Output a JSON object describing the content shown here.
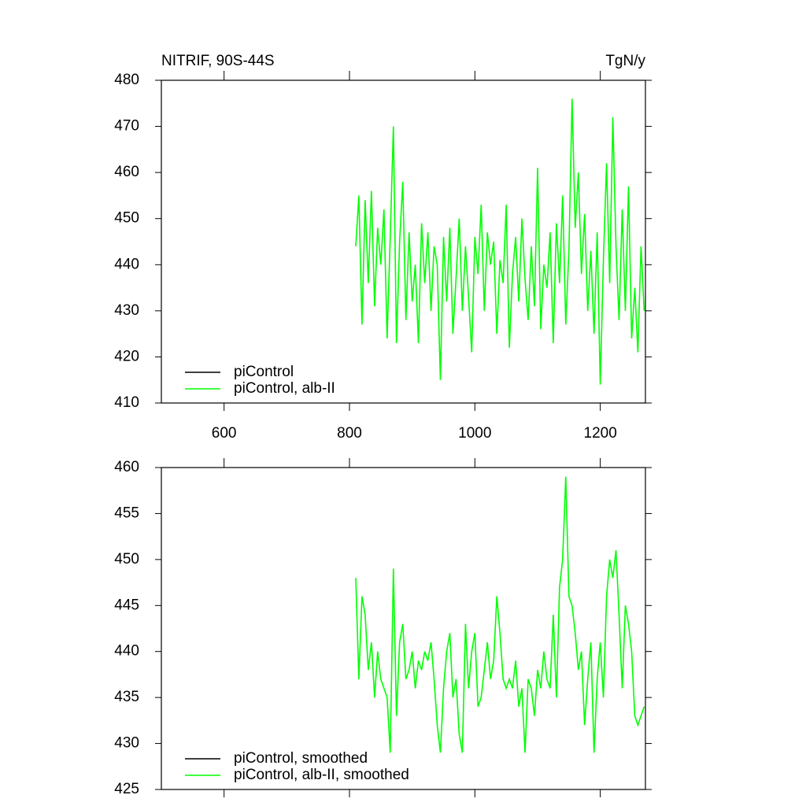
{
  "chart_data": [
    {
      "type": "line",
      "title": "NITRIF, 90S-44S",
      "units": "TgN/y",
      "xlim": [
        500,
        1272
      ],
      "xticks": [
        600,
        800,
        1000,
        1200
      ],
      "xtick_labels": true,
      "ylim": [
        410,
        480
      ],
      "yticks": [
        410,
        420,
        430,
        440,
        450,
        460,
        470,
        480
      ],
      "legend": "lower left",
      "series": [
        {
          "name": "piControl",
          "color": "#000000",
          "x": [],
          "values": []
        },
        {
          "name": "piControl, alb-II",
          "color": "#00ff00",
          "x": [
            810,
            815,
            820,
            825,
            830,
            835,
            840,
            845,
            850,
            855,
            860,
            865,
            870,
            875,
            880,
            885,
            890,
            895,
            900,
            905,
            910,
            915,
            920,
            925,
            930,
            935,
            940,
            945,
            950,
            955,
            960,
            965,
            970,
            975,
            980,
            985,
            990,
            995,
            1000,
            1005,
            1010,
            1015,
            1020,
            1025,
            1030,
            1035,
            1040,
            1045,
            1050,
            1055,
            1060,
            1065,
            1070,
            1075,
            1080,
            1085,
            1090,
            1095,
            1100,
            1105,
            1110,
            1115,
            1120,
            1125,
            1130,
            1135,
            1140,
            1145,
            1150,
            1155,
            1160,
            1165,
            1170,
            1175,
            1180,
            1185,
            1190,
            1195,
            1200,
            1205,
            1210,
            1215,
            1220,
            1225,
            1230,
            1235,
            1240,
            1245,
            1250,
            1255,
            1260,
            1265,
            1270
          ],
          "values": [
            444,
            455,
            427,
            454,
            436,
            456,
            431,
            448,
            440,
            452,
            424,
            446,
            470,
            423,
            445,
            458,
            428,
            447,
            432,
            440,
            423,
            449,
            436,
            447,
            430,
            444,
            440,
            415,
            446,
            432,
            448,
            425,
            437,
            450,
            430,
            444,
            433,
            421,
            446,
            438,
            453,
            430,
            447,
            440,
            445,
            425,
            441,
            436,
            453,
            422,
            438,
            446,
            432,
            450,
            437,
            428,
            444,
            431,
            461,
            426,
            440,
            435,
            447,
            423,
            449,
            436,
            455,
            427,
            443,
            476,
            448,
            460,
            438,
            451,
            430,
            443,
            425,
            447,
            414,
            441,
            462,
            436,
            472,
            444,
            428,
            452,
            430,
            457,
            424,
            435,
            421,
            444,
            430
          ]
        }
      ]
    },
    {
      "type": "line",
      "xlim": [
        500,
        1272
      ],
      "xticks": [
        600,
        800,
        1000,
        1200
      ],
      "xtick_labels": false,
      "ylim": [
        425,
        460
      ],
      "yticks": [
        425,
        430,
        435,
        440,
        445,
        450,
        455,
        460
      ],
      "legend": "lower left",
      "series": [
        {
          "name": "piControl, smoothed",
          "color": "#000000",
          "x": [],
          "values": []
        },
        {
          "name": "piControl, alb-II, smoothed",
          "color": "#00ff00",
          "x": [
            810,
            815,
            820,
            825,
            830,
            835,
            840,
            845,
            850,
            855,
            860,
            865,
            870,
            875,
            880,
            885,
            890,
            895,
            900,
            905,
            910,
            915,
            920,
            925,
            930,
            935,
            940,
            945,
            950,
            955,
            960,
            965,
            970,
            975,
            980,
            985,
            990,
            995,
            1000,
            1005,
            1010,
            1015,
            1020,
            1025,
            1030,
            1035,
            1040,
            1045,
            1050,
            1055,
            1060,
            1065,
            1070,
            1075,
            1080,
            1085,
            1090,
            1095,
            1100,
            1105,
            1110,
            1115,
            1120,
            1125,
            1130,
            1135,
            1140,
            1145,
            1150,
            1155,
            1160,
            1165,
            1170,
            1175,
            1180,
            1185,
            1190,
            1195,
            1200,
            1205,
            1210,
            1215,
            1220,
            1225,
            1230,
            1235,
            1240,
            1245,
            1250,
            1255,
            1260,
            1265,
            1270
          ],
          "values": [
            448,
            437,
            446,
            444,
            438,
            441,
            435,
            440,
            437,
            436,
            435,
            429,
            449,
            433,
            441,
            443,
            437,
            438,
            440,
            436,
            439,
            438,
            440,
            439,
            441,
            437,
            432,
            429,
            436,
            440,
            442,
            435,
            437,
            431,
            429,
            443,
            436,
            440,
            442,
            434,
            435,
            438,
            441,
            437,
            439,
            446,
            442,
            437,
            436,
            437,
            436,
            439,
            434,
            436,
            429,
            437,
            436,
            433,
            438,
            436,
            440,
            437,
            436,
            444,
            435,
            447,
            450,
            459,
            446,
            445,
            442,
            438,
            440,
            432,
            437,
            441,
            429,
            437,
            441,
            435,
            446,
            450,
            448,
            451,
            444,
            436,
            445,
            443,
            440,
            433,
            432,
            433,
            434
          ]
        }
      ]
    }
  ]
}
